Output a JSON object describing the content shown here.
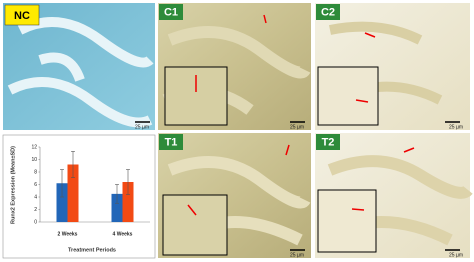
{
  "panels": [
    {
      "label": "NC",
      "scale": "25 µm"
    },
    {
      "label": "C1",
      "scale": "25 µm"
    },
    {
      "label": "C2",
      "scale": "25 µm"
    },
    {
      "label": "T1",
      "scale": "25 µm"
    },
    {
      "label": "T2",
      "scale": "25 µm"
    }
  ],
  "chart_data": {
    "type": "bar",
    "y_label": "Runx2 Expression (Mean±SD)",
    "x_label": "Treatment Periods",
    "categories": [
      "2 Weeks",
      "4 Weeks"
    ],
    "series": [
      {
        "color": "#2266b8",
        "values": [
          6.2,
          4.5
        ],
        "errors": [
          2.2,
          1.5
        ]
      },
      {
        "color": "#f24a14",
        "values": [
          9.2,
          6.4
        ],
        "errors": [
          2.1,
          2.0
        ]
      }
    ],
    "ylim": [
      0,
      12
    ],
    "yticks": [
      0,
      2,
      4,
      6,
      8,
      10,
      12
    ],
    "grid": false
  }
}
